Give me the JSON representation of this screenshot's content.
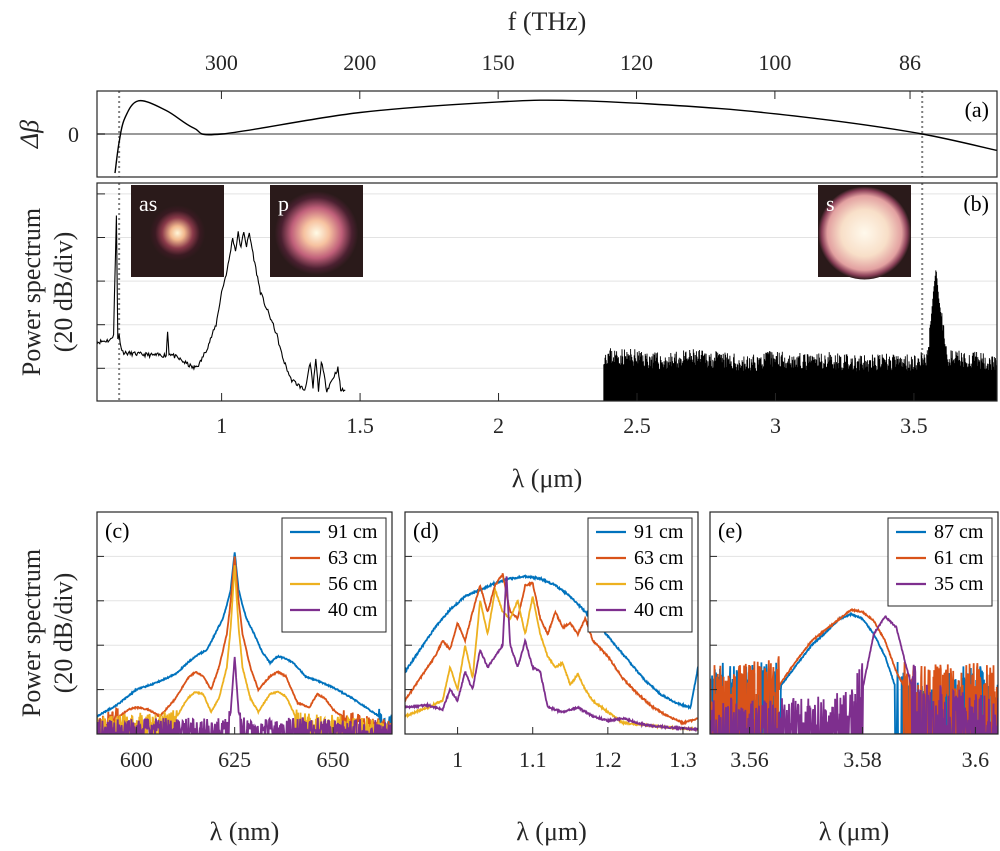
{
  "chart_data": [
    {
      "panel": "(a)",
      "type": "line",
      "top_axis": {
        "label": "f (THz)",
        "ticks": [
          300,
          200,
          150,
          120,
          100,
          86
        ]
      },
      "ylabel": "Δβ",
      "yticks": [
        0
      ],
      "xlim": [
        0.55,
        3.8
      ],
      "reference_lines_x": [
        0.63,
        3.53
      ],
      "series": [
        {
          "x": [
            0.615,
            0.63,
            0.65,
            0.7,
            0.8,
            0.9,
            1.0,
            1.5,
            2.0,
            2.3,
            2.8,
            3.2,
            3.53,
            3.8
          ],
          "y": [
            -1.0,
            -0.2,
            0.4,
            0.85,
            0.6,
            0.15,
            0.0,
            0.55,
            0.82,
            0.85,
            0.65,
            0.35,
            0.0,
            -0.42
          ]
        }
      ]
    },
    {
      "panel": "(b)",
      "type": "line",
      "ylabel": "Power spectrum\n(20 dB/div)",
      "xlabel": "λ (μm)",
      "xticks": [
        1,
        1.5,
        2,
        2.5,
        3,
        3.5
      ],
      "xlim": [
        0.55,
        3.8
      ],
      "ylim": [
        -105,
        -5
      ],
      "yticks": [
        -90,
        -70,
        -50,
        -30,
        -10
      ],
      "reference_lines_x": [
        0.63,
        3.53
      ],
      "insets": [
        {
          "label": "as",
          "x": 0.66
        },
        {
          "label": "p",
          "x": 1.2
        },
        {
          "label": "s",
          "x": 3.35
        }
      ],
      "series": [
        {
          "x": [
            0.55,
            0.6,
            0.61,
            0.62,
            0.625,
            0.63,
            0.64,
            0.65,
            0.7,
            0.75,
            0.8,
            0.805,
            0.81,
            0.85,
            0.9,
            0.92,
            0.95,
            0.98,
            1.0,
            1.02,
            1.03,
            1.04,
            1.05,
            1.06,
            1.07,
            1.08,
            1.09,
            1.1,
            1.11,
            1.12,
            1.14,
            1.16,
            1.18,
            1.2,
            1.22,
            1.25,
            1.3,
            1.32,
            1.33,
            1.34,
            1.35,
            1.36,
            1.38,
            1.42,
            1.43,
            1.45
          ],
          "y": [
            -78,
            -77,
            -74,
            -20,
            -76,
            -75,
            -82,
            -83,
            -83.5,
            -84,
            -84,
            -73,
            -83,
            -86,
            -90,
            -88,
            -80,
            -70,
            -55,
            -45,
            -38,
            -30,
            -36,
            -28,
            -35,
            -27,
            -34,
            -28,
            -35,
            -42,
            -55,
            -62,
            -68,
            -75,
            -85,
            -95,
            -100,
            -88,
            -99,
            -86,
            -100,
            -87,
            -100,
            -90,
            -100,
            -100
          ]
        },
        {
          "x": [
            2.38,
            2.5,
            2.6,
            2.7,
            2.8,
            2.9,
            3.0,
            3.1,
            3.2,
            3.3,
            3.4,
            3.5,
            3.55,
            3.57,
            3.58,
            3.59,
            3.62,
            3.7,
            3.8
          ],
          "y": [
            -85,
            -86,
            -88,
            -86,
            -87,
            -89,
            -86,
            -88,
            -87,
            -89,
            -88,
            -88,
            -86,
            -55,
            -44,
            -58,
            -86,
            -87,
            -88
          ]
        }
      ]
    },
    {
      "panel": "(c)",
      "type": "line",
      "ylabel": "Power spectrum\n(20 dB/div)",
      "xlabel": "λ (nm)",
      "xticks": [
        600,
        625,
        650
      ],
      "xlim": [
        590,
        665
      ],
      "ylim": [
        -100,
        0
      ],
      "yticks": [
        -80,
        -60,
        -40,
        -20
      ],
      "legend": "top-right",
      "series": [
        {
          "name": "91 cm",
          "color": "#0072BD",
          "x": [
            590,
            595,
            600,
            605,
            610,
            613,
            615,
            618,
            620,
            622,
            623,
            624,
            625,
            626,
            627,
            628,
            630,
            632,
            634,
            636,
            638,
            640,
            643,
            646,
            650,
            655,
            660,
            665
          ],
          "y": [
            -92,
            -87,
            -80,
            -77,
            -73,
            -68,
            -65,
            -62,
            -55,
            -48,
            -42,
            -35,
            -18,
            -35,
            -42,
            -48,
            -55,
            -63,
            -68,
            -65,
            -66,
            -68,
            -74,
            -76,
            -79,
            -84,
            -90,
            -96
          ]
        },
        {
          "name": "63 cm",
          "color": "#D95319",
          "x": [
            590,
            595,
            598,
            600,
            603,
            606,
            610,
            613,
            615,
            617,
            619,
            621,
            623,
            624,
            625,
            626,
            627,
            629,
            631,
            634,
            636,
            638,
            641,
            644,
            646,
            648,
            650,
            653,
            656,
            660,
            665
          ],
          "y": [
            -97,
            -93,
            -89,
            -88,
            -89,
            -92,
            -84,
            -75,
            -72,
            -74,
            -80,
            -70,
            -55,
            -40,
            -20,
            -40,
            -55,
            -70,
            -80,
            -74,
            -72,
            -74,
            -86,
            -88,
            -82,
            -84,
            -89,
            -93,
            -95,
            -97,
            -99
          ]
        },
        {
          "name": "56 cm",
          "color": "#EDB120",
          "x": [
            590,
            595,
            600,
            605,
            610,
            613,
            615,
            617,
            619,
            621,
            623,
            624,
            625,
            626,
            627,
            629,
            631,
            634,
            636,
            638,
            641,
            645,
            650,
            655,
            660,
            665
          ],
          "y": [
            -97,
            -96,
            -95,
            -95,
            -93,
            -84,
            -81,
            -82,
            -90,
            -84,
            -70,
            -52,
            -24,
            -52,
            -70,
            -84,
            -90,
            -82,
            -81,
            -83,
            -94,
            -96,
            -96,
            -97,
            -98,
            -99
          ]
        },
        {
          "name": "40 cm",
          "color": "#7E2F8E",
          "x": [
            590,
            600,
            610,
            620,
            623,
            624,
            625,
            626,
            627,
            630,
            640,
            650,
            660,
            665
          ],
          "y": [
            -98,
            -98,
            -97,
            -98,
            -97,
            -90,
            -65,
            -90,
            -97,
            -98,
            -97,
            -98,
            -98,
            -99
          ]
        }
      ]
    },
    {
      "panel": "(d)",
      "type": "line",
      "xlabel": "λ (μm)",
      "xticks": [
        1,
        1.1,
        1.2,
        1.3
      ],
      "xlim": [
        0.93,
        1.32
      ],
      "ylim": [
        -100,
        0
      ],
      "yticks": [
        -80,
        -60,
        -40,
        -20
      ],
      "legend": "top-right",
      "series": [
        {
          "name": "91 cm",
          "color": "#0072BD",
          "x": [
            0.93,
            0.95,
            0.97,
            0.99,
            1.01,
            1.03,
            1.05,
            1.07,
            1.09,
            1.11,
            1.13,
            1.15,
            1.17,
            1.19,
            1.21,
            1.23,
            1.25,
            1.27,
            1.29,
            1.31,
            1.32
          ],
          "y": [
            -72,
            -62,
            -52,
            -44,
            -38,
            -35,
            -32,
            -30,
            -29,
            -30,
            -33,
            -38,
            -45,
            -52,
            -60,
            -68,
            -76,
            -82,
            -86,
            -88,
            -70
          ]
        },
        {
          "name": "63 cm",
          "color": "#D95319",
          "x": [
            0.93,
            0.95,
            0.97,
            0.98,
            0.99,
            1.0,
            1.01,
            1.02,
            1.03,
            1.04,
            1.05,
            1.06,
            1.07,
            1.08,
            1.09,
            1.1,
            1.11,
            1.12,
            1.13,
            1.14,
            1.15,
            1.16,
            1.17,
            1.18,
            1.2,
            1.22,
            1.24,
            1.26,
            1.28,
            1.3,
            1.32
          ],
          "y": [
            -85,
            -75,
            -65,
            -58,
            -62,
            -50,
            -58,
            -45,
            -33,
            -45,
            -33,
            -28,
            -45,
            -48,
            -33,
            -32,
            -48,
            -55,
            -45,
            -52,
            -50,
            -55,
            -48,
            -58,
            -65,
            -75,
            -82,
            -88,
            -92,
            -95,
            -93
          ]
        },
        {
          "name": "56 cm",
          "color": "#EDB120",
          "x": [
            0.93,
            0.96,
            0.98,
            0.99,
            1.0,
            1.01,
            1.02,
            1.03,
            1.04,
            1.05,
            1.06,
            1.07,
            1.08,
            1.09,
            1.1,
            1.11,
            1.12,
            1.13,
            1.14,
            1.15,
            1.16,
            1.17,
            1.18,
            1.2,
            1.22,
            1.25,
            1.28,
            1.32
          ],
          "y": [
            -92,
            -88,
            -85,
            -70,
            -80,
            -60,
            -75,
            -40,
            -55,
            -35,
            -45,
            -48,
            -40,
            -55,
            -38,
            -55,
            -65,
            -70,
            -68,
            -78,
            -73,
            -80,
            -85,
            -90,
            -95,
            -96,
            -97,
            -98
          ]
        },
        {
          "name": "40 cm",
          "color": "#7E2F8E",
          "x": [
            0.93,
            0.96,
            0.98,
            0.99,
            1.0,
            1.01,
            1.02,
            1.03,
            1.04,
            1.05,
            1.06,
            1.065,
            1.07,
            1.08,
            1.09,
            1.1,
            1.11,
            1.12,
            1.14,
            1.16,
            1.18,
            1.2,
            1.22,
            1.25,
            1.28,
            1.32
          ],
          "y": [
            -88,
            -87,
            -89,
            -80,
            -85,
            -72,
            -80,
            -62,
            -70,
            -65,
            -60,
            -28,
            -60,
            -70,
            -58,
            -70,
            -72,
            -88,
            -90,
            -88,
            -92,
            -94,
            -93,
            -96,
            -97,
            -98
          ]
        }
      ]
    },
    {
      "panel": "(e)",
      "type": "line",
      "xlabel": "λ (μm)",
      "xticks": [
        3.56,
        3.58,
        3.6
      ],
      "xlim": [
        3.553,
        3.604
      ],
      "ylim": [
        -100,
        0
      ],
      "yticks": [
        -80,
        -60,
        -40,
        -20
      ],
      "legend": "top-right",
      "series": [
        {
          "name": "87 cm",
          "color": "#0072BD",
          "x": [
            3.553,
            3.56,
            3.565,
            3.568,
            3.571,
            3.574,
            3.576,
            3.578,
            3.58,
            3.582,
            3.584,
            3.586,
            3.588,
            3.59,
            3.6,
            3.604
          ],
          "y": [
            -82,
            -83,
            -80,
            -70,
            -60,
            -53,
            -48,
            -46,
            -48,
            -55,
            -65,
            -80,
            -90,
            -90,
            -82,
            -84
          ]
        },
        {
          "name": "61 cm",
          "color": "#D95319",
          "x": [
            3.553,
            3.56,
            3.565,
            3.568,
            3.571,
            3.574,
            3.576,
            3.578,
            3.58,
            3.582,
            3.584,
            3.586,
            3.588,
            3.59,
            3.6,
            3.604
          ],
          "y": [
            -82,
            -82,
            -79,
            -68,
            -58,
            -52,
            -48,
            -44,
            -45,
            -49,
            -58,
            -72,
            -82,
            -83,
            -82,
            -83
          ]
        },
        {
          "name": "35 cm",
          "color": "#7E2F8E",
          "x": [
            3.553,
            3.57,
            3.578,
            3.58,
            3.582,
            3.584,
            3.586,
            3.588,
            3.59,
            3.6,
            3.604
          ],
          "y": [
            -98,
            -98,
            -95,
            -80,
            -55,
            -47,
            -52,
            -72,
            -90,
            -96,
            -98
          ]
        }
      ]
    }
  ]
}
